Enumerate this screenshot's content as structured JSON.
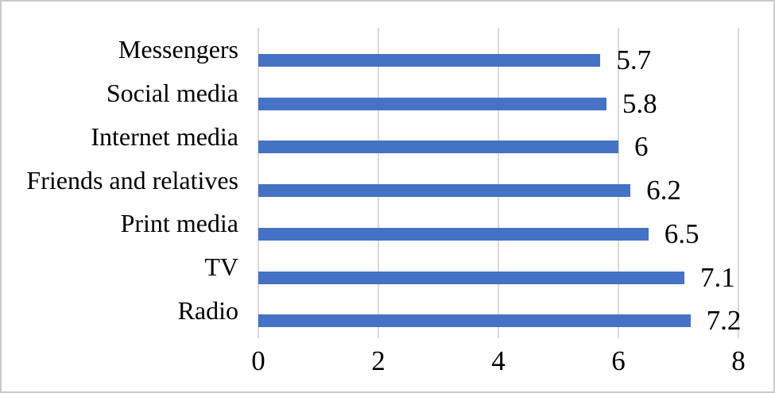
{
  "chart_data": {
    "type": "bar",
    "orientation": "horizontal",
    "title": "",
    "xlabel": "",
    "ylabel": "",
    "categories": [
      "Messengers",
      "Social media",
      "Internet media",
      "Friends and relatives",
      "Print media",
      "TV",
      "Radio"
    ],
    "values": [
      5.7,
      5.8,
      6,
      6.2,
      6.5,
      7.1,
      7.2
    ],
    "data_labels": [
      "5.7",
      "5.8",
      "6",
      "6.2",
      "6.5",
      "7.1",
      "7.2"
    ],
    "x_ticks": [
      "0",
      "2",
      "4",
      "6",
      "8"
    ],
    "x_tick_values": [
      0,
      2,
      4,
      6,
      8
    ],
    "xlim": [
      0,
      8
    ],
    "grid": "vertical-gridlines-on",
    "legend": "none",
    "colors": {
      "bar": "#4472C4",
      "gridline": "#D9D9D9",
      "text": "#000000",
      "background": "#FFFFFF",
      "frame_border": "#C9C9C9"
    }
  }
}
